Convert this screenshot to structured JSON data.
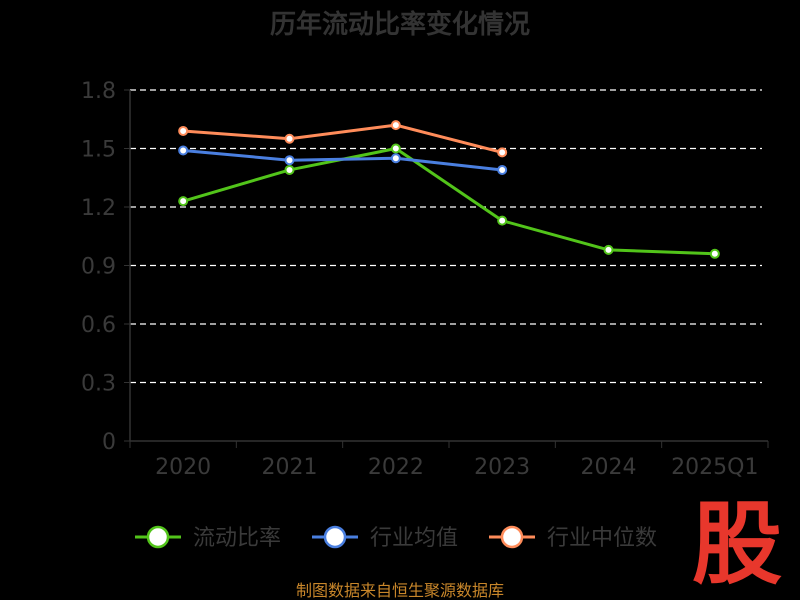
{
  "chart_data": {
    "type": "line",
    "title": "历年流动比率变化情况",
    "categories": [
      "2020",
      "2021",
      "2022",
      "2023",
      "2024",
      "2025Q1"
    ],
    "y_ticks": [
      "0",
      "0.3",
      "0.6",
      "0.9",
      "1.2",
      "1.5",
      "1.8"
    ],
    "ylim": [
      0,
      1.8
    ],
    "grid": true,
    "legend_position": "bottom",
    "series": [
      {
        "name": "流动比率",
        "color": "#52c41a",
        "values": [
          1.23,
          1.39,
          1.5,
          1.13,
          0.98,
          0.96
        ]
      },
      {
        "name": "行业均值",
        "color": "#4a7fe0",
        "values": [
          1.49,
          1.44,
          1.45,
          1.39,
          null,
          null
        ]
      },
      {
        "name": "行业中位数",
        "color": "#ff8c5a",
        "values": [
          1.59,
          1.55,
          1.62,
          1.48,
          null,
          null
        ]
      }
    ]
  },
  "source_text": "制图数据来自恒生聚源数据库",
  "logo_text": "股",
  "colors": {
    "background": "#000000",
    "axis": "#333333",
    "grid": "#ffffff"
  }
}
